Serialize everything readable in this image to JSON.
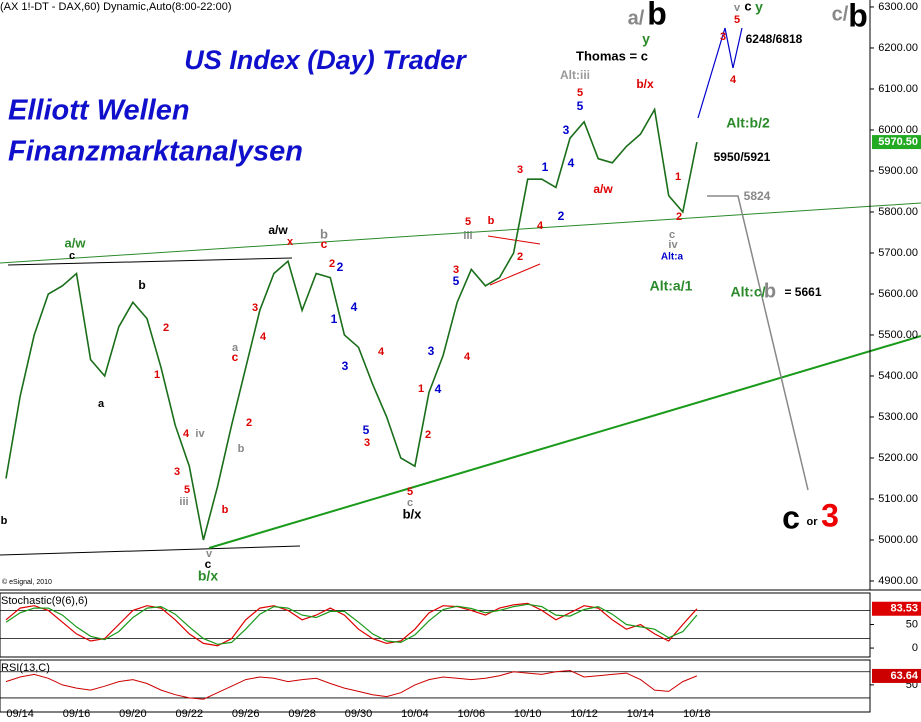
{
  "chart_data": [
    {
      "type": "line",
      "header": "(AX 1!-DT - DAX,60) Dynamic,Auto(8:00-22:00)",
      "title": "US Index (Day) Trader",
      "subtitle": [
        "Elliott Wellen",
        "Finanzmarktanalysen"
      ],
      "copyright": "© eSignal, 2010",
      "categories": [
        null,
        "09/14",
        null,
        null,
        null,
        "09/16",
        null,
        null,
        null,
        "09/20",
        null,
        null,
        null,
        "09/22",
        null,
        null,
        null,
        "09/26",
        null,
        null,
        null,
        "09/28",
        null,
        null,
        null,
        "09/30",
        null,
        null,
        null,
        "10/04",
        null,
        null,
        null,
        "10/06",
        null,
        null,
        null,
        "10/10",
        null,
        null,
        null,
        "10/12",
        null,
        null,
        null,
        "10/14",
        null,
        null,
        null,
        "10/18"
      ],
      "values": [
        5150,
        5350,
        5500,
        5600,
        5620,
        5650,
        5440,
        5400,
        5520,
        5580,
        5540,
        5420,
        5280,
        5180,
        5000,
        5130,
        5280,
        5420,
        5560,
        5650,
        5680,
        5560,
        5650,
        5640,
        5500,
        5470,
        5380,
        5300,
        5200,
        5180,
        5360,
        5450,
        5580,
        5660,
        5620,
        5640,
        5700,
        5880,
        5880,
        5860,
        5980,
        6020,
        5930,
        5920,
        5960,
        5990,
        6050,
        5840,
        5800,
        5970.5
      ],
      "color": "#1a6e1a",
      "last": {
        "value": 5970.5,
        "label": "5970.50"
      },
      "last_color": "#22aa22",
      "ylim": [
        4878,
        6317
      ],
      "yticks": [
        {
          "value": 4900,
          "label": "4900.00"
        },
        {
          "value": 5000,
          "label": "5000.00"
        },
        {
          "value": 5100,
          "label": "5100.00"
        },
        {
          "value": 5200,
          "label": "5200.00"
        },
        {
          "value": 5300,
          "label": "5300.00"
        },
        {
          "value": 5400,
          "label": "5400.00"
        },
        {
          "value": 5500,
          "label": "5500.00"
        },
        {
          "value": 5600,
          "label": "5600.00"
        },
        {
          "value": 5700,
          "label": "5700.00"
        },
        {
          "value": 5800,
          "label": "5800.00"
        },
        {
          "value": 5900,
          "label": "5900.00"
        },
        {
          "value": 6000,
          "label": "6000.00"
        },
        {
          "value": 6100,
          "label": "6100.00"
        },
        {
          "value": 6200,
          "label": "6200.00"
        },
        {
          "value": 6300,
          "label": "6300.00"
        }
      ],
      "annotations": [
        {
          "text": "a/w",
          "color": "#2a8a2a"
        },
        {
          "text": "c",
          "color": "#000000"
        },
        {
          "text": "b",
          "color": "#000000"
        },
        {
          "text": "a/w",
          "color": "#000000"
        },
        {
          "text": "x",
          "color": "#dd0000"
        },
        {
          "text": "b",
          "color": "#888888"
        },
        {
          "text": "c",
          "color": "#dd0000"
        },
        {
          "text": "b/x",
          "color": "#000000"
        },
        {
          "text": "c",
          "color": "#000000"
        },
        {
          "text": "b/x",
          "color": "#2a8a2a"
        },
        {
          "text": "Thomas = c",
          "color": "#000000"
        },
        {
          "text": "Alt:iii",
          "color": "#999999"
        },
        {
          "text": "b/x",
          "color": "#dd0000"
        },
        {
          "text": "5",
          "color": "#dd0000"
        },
        {
          "text": "3",
          "color": "#0000cc"
        },
        {
          "text": "a/w",
          "color": "#dd0000"
        },
        {
          "text": "Alt:b/2",
          "color": "#2a8a2a"
        },
        {
          "text": "5950/5921",
          "color": "#000000"
        },
        {
          "text": "5824",
          "color": "#888888"
        },
        {
          "text": "Alt:a/1",
          "color": "#2a8a2a"
        },
        {
          "text": "Alt:c/",
          "color": "#2a8a2a"
        },
        {
          "text": "b",
          "color": "#888888"
        },
        {
          "text": "= 5661",
          "color": "#000000"
        },
        {
          "text": "6248/6818",
          "color": "#000000"
        },
        {
          "text": "a/",
          "color": "#888888"
        },
        {
          "text": "b",
          "color": "#000000"
        },
        {
          "text": "y",
          "color": "#2a8a2a"
        },
        {
          "text": "v",
          "color": "#888888"
        },
        {
          "text": "c",
          "color": "#000000"
        },
        {
          "text": "y",
          "color": "#2a8a2a"
        },
        {
          "text": "5",
          "color": "#dd0000"
        },
        {
          "text": "3",
          "color": "#dd0000"
        },
        {
          "text": "4",
          "color": "#dd0000"
        },
        {
          "text": "c/",
          "color": "#888888"
        },
        {
          "text": "b",
          "color": "#000000"
        },
        {
          "text": "c",
          "color": "#000000"
        },
        {
          "text": "or",
          "color": "#000000"
        },
        {
          "text": "3",
          "color": "#ee0000"
        },
        {
          "text": "Alt:a",
          "color": "#0000cc"
        },
        {
          "text": "c",
          "color": "#888888"
        },
        {
          "text": "iv",
          "color": "#888888"
        },
        {
          "text": "2",
          "color": "#dd0000"
        },
        {
          "text": "1",
          "color": "#dd0000"
        },
        {
          "text": "1",
          "color": "#0000cc"
        },
        {
          "text": "2",
          "color": "#0000cc"
        },
        {
          "text": "3",
          "color": "#dd0000"
        },
        {
          "text": "4",
          "color": "#dd0000"
        },
        {
          "text": "4",
          "color": "#0000cc"
        },
        {
          "text": "5",
          "color": "#0000cc"
        },
        {
          "text": "iii",
          "color": "#888888"
        },
        {
          "text": "5",
          "color": "#dd0000"
        },
        {
          "text": "3",
          "color": "#dd0000"
        },
        {
          "text": "5",
          "color": "#0000cc"
        },
        {
          "text": "4",
          "color": "#dd0000"
        },
        {
          "text": "3",
          "color": "#0000cc"
        },
        {
          "text": "4",
          "color": "#0000cc"
        },
        {
          "text": "1",
          "color": "#dd0000"
        },
        {
          "text": "2",
          "color": "#dd0000"
        },
        {
          "text": "5",
          "color": "#dd0000"
        },
        {
          "text": "c",
          "color": "#888888"
        },
        {
          "text": "5",
          "color": "#0000cc"
        },
        {
          "text": "3",
          "color": "#dd0000"
        },
        {
          "text": "4",
          "color": "#dd0000"
        },
        {
          "text": "3",
          "color": "#0000cc"
        },
        {
          "text": "4",
          "color": "#0000cc"
        },
        {
          "text": "1",
          "color": "#0000cc"
        },
        {
          "text": "2",
          "color": "#dd0000"
        },
        {
          "text": "2",
          "color": "#0000cc"
        },
        {
          "text": "3",
          "color": "#dd0000"
        },
        {
          "text": "4",
          "color": "#dd0000"
        },
        {
          "text": "5",
          "color": "#dd0000"
        },
        {
          "text": "3",
          "color": "#dd0000"
        },
        {
          "text": "4",
          "color": "#dd0000"
        },
        {
          "text": "iv",
          "color": "#888888"
        },
        {
          "text": "iii",
          "color": "#888888"
        },
        {
          "text": "b",
          "color": "#dd0000"
        },
        {
          "text": "c",
          "color": "#dd0000"
        },
        {
          "text": "a",
          "color": "#888888"
        },
        {
          "text": "2",
          "color": "#dd0000"
        },
        {
          "text": "b",
          "color": "#888888"
        },
        {
          "text": "v",
          "color": "#888888"
        },
        {
          "text": "1",
          "color": "#dd0000"
        },
        {
          "text": "2",
          "color": "#dd0000"
        },
        {
          "text": "a",
          "color": "#000000"
        },
        {
          "text": "b",
          "color": "#000000"
        },
        {
          "text": "b",
          "color": "#dd0000"
        },
        {
          "text": "2",
          "color": "#dd0000"
        }
      ]
    },
    {
      "type": "line",
      "label": "Stochastic(9(6),6)",
      "series": [
        {
          "color": "#dd0000",
          "values": [
            60,
            85,
            90,
            80,
            55,
            30,
            15,
            20,
            50,
            80,
            90,
            85,
            60,
            30,
            10,
            5,
            20,
            60,
            85,
            90,
            80,
            60,
            70,
            85,
            70,
            40,
            20,
            10,
            15,
            40,
            75,
            90,
            88,
            80,
            70,
            85,
            92,
            95,
            80,
            60,
            75,
            90,
            85,
            60,
            40,
            50,
            30,
            15,
            50,
            83.53
          ]
        },
        {
          "color": "#1a9a1a",
          "values": [
            55,
            75,
            85,
            85,
            70,
            45,
            25,
            18,
            35,
            65,
            85,
            88,
            72,
            45,
            20,
            8,
            12,
            40,
            72,
            88,
            85,
            70,
            65,
            78,
            78,
            55,
            30,
            15,
            12,
            28,
            58,
            82,
            89,
            84,
            75,
            80,
            88,
            93,
            88,
            70,
            68,
            82,
            88,
            72,
            50,
            45,
            40,
            22,
            35,
            70
          ]
        }
      ],
      "last": 83.53,
      "ylim": [
        -19,
        117
      ],
      "yticks": [
        0,
        50
      ],
      "levels": [
        20,
        80
      ]
    },
    {
      "type": "line",
      "label": "RSI(13,C)",
      "values": [
        55,
        62,
        66,
        60,
        50,
        45,
        42,
        48,
        55,
        58,
        52,
        42,
        35,
        30,
        28,
        38,
        48,
        58,
        62,
        60,
        55,
        58,
        60,
        52,
        45,
        40,
        35,
        32,
        38,
        50,
        58,
        62,
        60,
        58,
        60,
        64,
        70,
        68,
        66,
        70,
        72,
        62,
        64,
        66,
        68,
        58,
        42,
        40,
        55,
        63.64
      ],
      "color": "#cc0000",
      "last": 63.64,
      "ylim": [
        8.5,
        88
      ],
      "yticks": [
        50
      ],
      "levels": [
        30,
        70
      ]
    }
  ]
}
